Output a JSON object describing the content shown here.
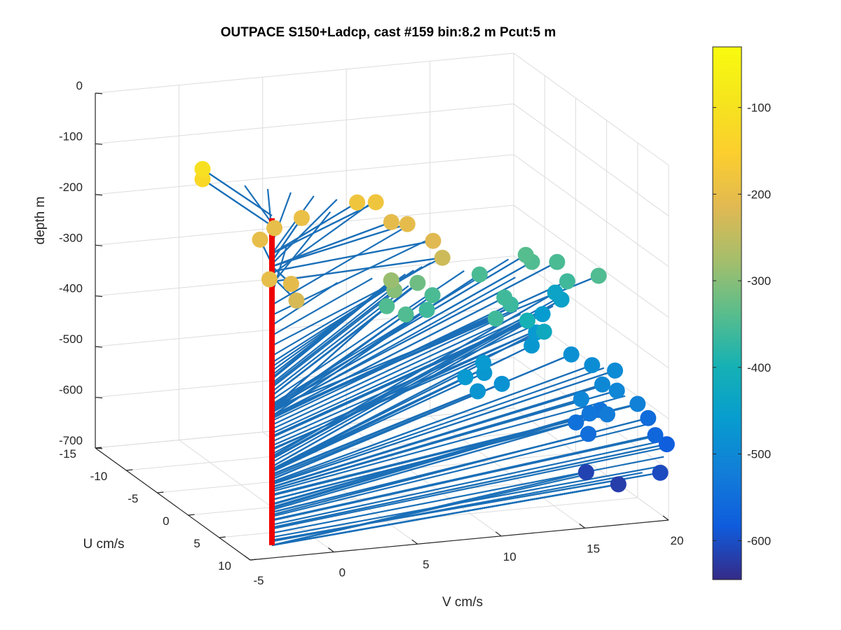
{
  "chart_data": {
    "type": "3d-line-scatter",
    "title": "OUTPACE S150+Ladcp, cast #159 bin:8.2 m  Pcut:5 m",
    "xlabel": "U cm/s",
    "ylabel": "V cm/s",
    "zlabel": "depth m",
    "xlim": [
      -15,
      10
    ],
    "ylim": [
      -5,
      20
    ],
    "zlim": [
      -700,
      0
    ],
    "xticks": [
      "-15",
      "-10",
      "-5",
      "0",
      "5",
      "10"
    ],
    "yticks": [
      "-5",
      "0",
      "5",
      "10",
      "15",
      "20"
    ],
    "zticks": [
      "0",
      "-100",
      "-200",
      "-300",
      "-400",
      "-500",
      "-600",
      "-700"
    ],
    "grid": true,
    "colorbar": {
      "colormap": "parula",
      "clim": [
        -645,
        -30
      ],
      "ticks": [
        "-100",
        "-200",
        "-300",
        "-400",
        "-500",
        "-600"
      ],
      "tick_values": [
        -100,
        -200,
        -300,
        -400,
        -500,
        -600
      ]
    },
    "station_line": {
      "color": "#ee0000",
      "z_top": -130,
      "z_bottom": -775
    },
    "stick_color": "#1a6fb8",
    "points": [
      {
        "u": -8.5,
        "v": -1.0,
        "depth": -105
      },
      {
        "u": -8.5,
        "v": -1.0,
        "depth": -125
      },
      {
        "u": 5.0,
        "v": -2.0,
        "depth": -200
      },
      {
        "u": 5.8,
        "v": -1.0,
        "depth": -205
      },
      {
        "u": 7.2,
        "v": -1.2,
        "depth": -225
      },
      {
        "u": -3.0,
        "v": 0.4,
        "depth": -200
      },
      {
        "u": -5.0,
        "v": 2.0,
        "depth": -200
      },
      {
        "u": -6.0,
        "v": 4.0,
        "depth": -195
      },
      {
        "u": -6.5,
        "v": 7.5,
        "depth": -180
      },
      {
        "u": -6.2,
        "v": 8.5,
        "depth": -180
      },
      {
        "u": -4.5,
        "v": 8.8,
        "depth": -205
      },
      {
        "u": -3.8,
        "v": 9.5,
        "depth": -205
      },
      {
        "u": -1.0,
        "v": 10.0,
        "depth": -215
      },
      {
        "u": 0.5,
        "v": 10.0,
        "depth": -235
      },
      {
        "u": -1.0,
        "v": 7.5,
        "depth": -285
      },
      {
        "u": -0.5,
        "v": 7.5,
        "depth": -300
      },
      {
        "u": -3.5,
        "v": 10.0,
        "depth": -320
      },
      {
        "u": -2.0,
        "v": 7.6,
        "depth": -345
      },
      {
        "u": 0.0,
        "v": 8.0,
        "depth": -345
      },
      {
        "u": -3.8,
        "v": 11.0,
        "depth": -350
      },
      {
        "u": -2.0,
        "v": 10.0,
        "depth": -360
      },
      {
        "u": -7.0,
        "v": 15.0,
        "depth": -350
      },
      {
        "u": -9.0,
        "v": 18.5,
        "depth": -340
      },
      {
        "u": -8.0,
        "v": 18.5,
        "depth": -345
      },
      {
        "u": -8.0,
        "v": 20.0,
        "depth": -350
      },
      {
        "u": -5.0,
        "v": 19.5,
        "depth": -360
      },
      {
        "u": -3.0,
        "v": 15.0,
        "depth": -360
      },
      {
        "u": -2.0,
        "v": 15.0,
        "depth": -365
      },
      {
        "u": 1.0,
        "v": 13.0,
        "depth": -360
      },
      {
        "u": -4.0,
        "v": 21.0,
        "depth": -345
      },
      {
        "u": -2.0,
        "v": 16.0,
        "depth": -400
      },
      {
        "u": -2.0,
        "v": 17.0,
        "depth": -425
      },
      {
        "u": -11.0,
        "v": 21.0,
        "depth": -440
      },
      {
        "u": -10.0,
        "v": 21.0,
        "depth": -445
      },
      {
        "u": -9.0,
        "v": 19.5,
        "depth": -460
      },
      {
        "u": -6.0,
        "v": 18.0,
        "depth": -465
      },
      {
        "u": -4.0,
        "v": 17.0,
        "depth": -470
      },
      {
        "u": -1.0,
        "v": 13.0,
        "depth": -465
      },
      {
        "u": 0.5,
        "v": 12.5,
        "depth": -470
      },
      {
        "u": 1.5,
        "v": 11.0,
        "depth": -465
      },
      {
        "u": 3.5,
        "v": 11.0,
        "depth": -475
      },
      {
        "u": 2.0,
        "v": 13.0,
        "depth": -480
      },
      {
        "u": -3.0,
        "v": 19.0,
        "depth": -485
      },
      {
        "u": -1.0,
        "v": 19.5,
        "depth": -490
      },
      {
        "u": 0.0,
        "v": 20.5,
        "depth": -495
      },
      {
        "u": 2.0,
        "v": 19.0,
        "depth": -500
      },
      {
        "u": 4.0,
        "v": 17.0,
        "depth": -505
      },
      {
        "u": 3.0,
        "v": 19.5,
        "depth": -505
      },
      {
        "u": 5.0,
        "v": 20.0,
        "depth": -515
      },
      {
        "u": 5.5,
        "v": 18.0,
        "depth": -525
      },
      {
        "u": 4.0,
        "v": 17.5,
        "depth": -535
      },
      {
        "u": 3.0,
        "v": 18.5,
        "depth": -540
      },
      {
        "u": 4.5,
        "v": 16.5,
        "depth": -545
      },
      {
        "u": 6.5,
        "v": 16.5,
        "depth": -550
      },
      {
        "u": 4.0,
        "v": 21.0,
        "depth": -555
      },
      {
        "u": 6.5,
        "v": 20.5,
        "depth": -565
      },
      {
        "u": 7.0,
        "v": 21.0,
        "depth": -580
      },
      {
        "u": 10.0,
        "v": 19.5,
        "depth": -605
      },
      {
        "u": 7.5,
        "v": 16.0,
        "depth": -615
      },
      {
        "u": 10.0,
        "v": 17.0,
        "depth": -620
      }
    ]
  }
}
